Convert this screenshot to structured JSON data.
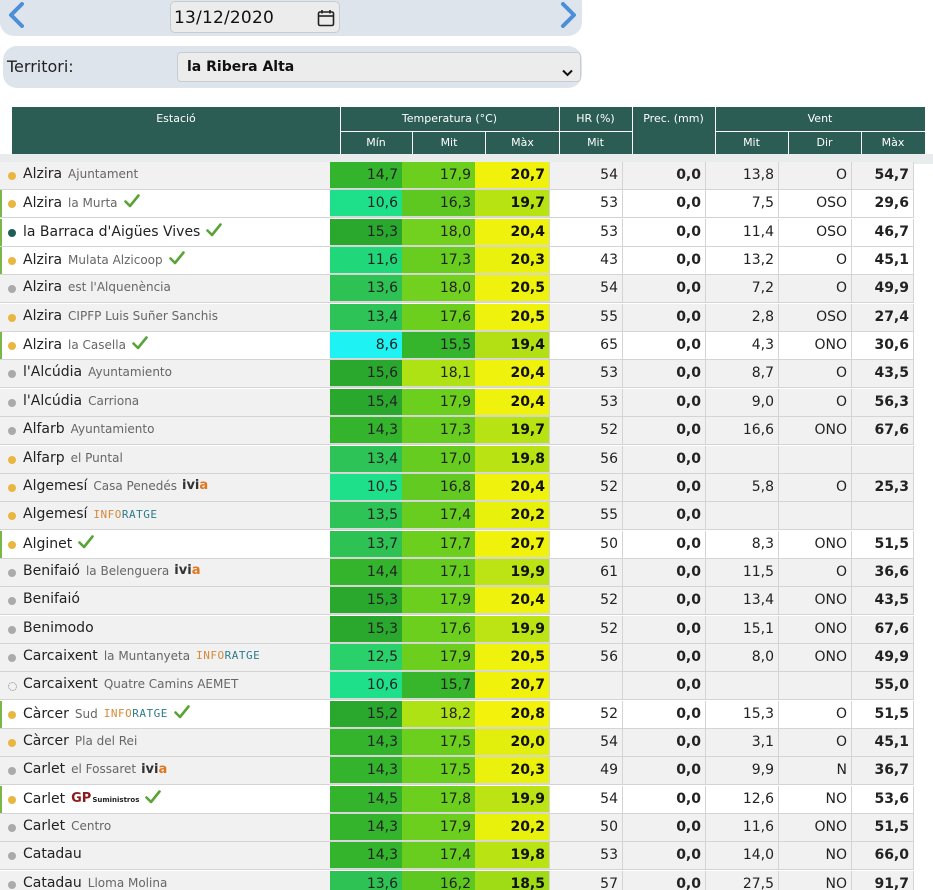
{
  "date_nav": {
    "date": "13/12/2020",
    "prev_icon": "chevron-left-icon",
    "next_icon": "chevron-right-icon",
    "calendar_icon": "calendar-icon"
  },
  "territory": {
    "label": "Territori:",
    "value": "la Ribera Alta"
  },
  "header": {
    "station": "Estació",
    "temperature": "Temperatura (°C)",
    "hr": "HR (%)",
    "prec": "Prec. (mm)",
    "wind": "Vent",
    "temp_min": "Mín",
    "temp_mit": "Mit",
    "temp_max": "Màx",
    "hr_mit": "Mit",
    "wind_mit": "Mit",
    "wind_dir": "Dir",
    "wind_max": "Màx"
  },
  "colors": {
    "header_bg": "#2b5d55",
    "check": "#5aa338",
    "dot_yellow": "#e9b640",
    "dot_gray": "#aaaaaa",
    "dot_teal": "#1e5e56"
  },
  "rows": [
    {
      "name": "Alzira",
      "sub": "Ajuntament",
      "dot": "yellow",
      "check": false,
      "logo": "",
      "min": "14,7",
      "mit": "17,9",
      "max": "20,7",
      "hr": "54",
      "prec": "0,0",
      "vmit": "13,8",
      "dir": "O",
      "vmax": "54,7",
      "min_c": "#34b42c",
      "mit_c": "#6ccf1e",
      "max_c": "#f1f20c",
      "bg": "gray"
    },
    {
      "name": "Alzira",
      "sub": "la Murta",
      "dot": "yellow",
      "check": true,
      "logo": "",
      "min": "10,6",
      "mit": "16,3",
      "max": "19,7",
      "hr": "53",
      "prec": "0,0",
      "vmit": "7,5",
      "dir": "OSO",
      "vmax": "29,6",
      "min_c": "#1fe08a",
      "mit_c": "#5ec821",
      "max_c": "#b7e313",
      "bg": "white",
      "accent": true
    },
    {
      "name": "la Barraca d'Aigües Vives",
      "sub": "",
      "dot": "teal",
      "check": true,
      "logo": "",
      "min": "15,3",
      "mit": "18,0",
      "max": "20,4",
      "hr": "53",
      "prec": "0,0",
      "vmit": "11,4",
      "dir": "OSO",
      "vmax": "46,7",
      "min_c": "#2aa82d",
      "mit_c": "#72d01e",
      "max_c": "#eef20c",
      "bg": "white",
      "accent": true
    },
    {
      "name": "Alzira",
      "sub": "Mulata Alzicoop",
      "dot": "yellow",
      "check": true,
      "logo": "",
      "min": "11,6",
      "mit": "17,3",
      "max": "20,3",
      "hr": "43",
      "prec": "0,0",
      "vmit": "13,2",
      "dir": "O",
      "vmax": "45,1",
      "min_c": "#20d87a",
      "mit_c": "#68cd1f",
      "max_c": "#eaf10c",
      "bg": "white",
      "accent": true
    },
    {
      "name": "Alzira",
      "sub": "est l'Alquenència",
      "dot": "gray",
      "check": false,
      "logo": "",
      "min": "13,6",
      "mit": "18,0",
      "max": "20,5",
      "hr": "54",
      "prec": "0,0",
      "vmit": "7,2",
      "dir": "O",
      "vmax": "49,9",
      "min_c": "#2ec153",
      "mit_c": "#72d01e",
      "max_c": "#eff20c",
      "bg": "gray"
    },
    {
      "name": "Alzira",
      "sub": "CIPFP Luis Suñer Sanchis",
      "dot": "yellow",
      "check": false,
      "logo": "",
      "min": "13,4",
      "mit": "17,6",
      "max": "20,5",
      "hr": "55",
      "prec": "0,0",
      "vmit": "2,8",
      "dir": "OSO",
      "vmax": "27,4",
      "min_c": "#2ec356",
      "mit_c": "#6ccf1e",
      "max_c": "#eff20c",
      "bg": "gray"
    },
    {
      "name": "Alzira",
      "sub": "la Casella",
      "dot": "yellow",
      "check": true,
      "logo": "",
      "min": "8,6",
      "mit": "15,5",
      "max": "19,4",
      "hr": "65",
      "prec": "0,0",
      "vmit": "4,3",
      "dir": "ONO",
      "vmax": "30,6",
      "min_c": "#1ff2f2",
      "mit_c": "#35b52b",
      "max_c": "#b2e014",
      "bg": "white",
      "accent": true
    },
    {
      "name": "l'Alcúdia",
      "sub": "Ayuntamiento",
      "dot": "gray",
      "check": false,
      "logo": "",
      "min": "15,6",
      "mit": "18,1",
      "max": "20,4",
      "hr": "53",
      "prec": "0,0",
      "vmit": "8,7",
      "dir": "O",
      "vmax": "43,5",
      "min_c": "#2aa82d",
      "mit_c": "#aee214",
      "max_c": "#eef20c",
      "bg": "gray"
    },
    {
      "name": "l'Alcúdia",
      "sub": "Carriona",
      "dot": "gray",
      "check": false,
      "logo": "",
      "min": "15,4",
      "mit": "17,9",
      "max": "20,4",
      "hr": "53",
      "prec": "0,0",
      "vmit": "9,0",
      "dir": "O",
      "vmax": "56,3",
      "min_c": "#2aa82d",
      "mit_c": "#6ccf1e",
      "max_c": "#eef20c",
      "bg": "gray"
    },
    {
      "name": "Alfarb",
      "sub": "Ayuntamiento",
      "dot": "gray",
      "check": false,
      "logo": "",
      "min": "14,3",
      "mit": "17,3",
      "max": "19,7",
      "hr": "52",
      "prec": "0,0",
      "vmit": "16,6",
      "dir": "ONO",
      "vmax": "67,6",
      "min_c": "#34b42c",
      "mit_c": "#68cd1f",
      "max_c": "#b7e313",
      "bg": "gray"
    },
    {
      "name": "Alfarp",
      "sub": "el Puntal",
      "dot": "yellow",
      "check": false,
      "logo": "",
      "min": "13,4",
      "mit": "17,0",
      "max": "19,8",
      "hr": "56",
      "prec": "0,0",
      "vmit": "",
      "dir": "",
      "vmax": "",
      "min_c": "#2ec356",
      "mit_c": "#66cc1f",
      "max_c": "#b9e313",
      "bg": "gray"
    },
    {
      "name": "Algemesí",
      "sub": "Casa Penedés",
      "dot": "yellow",
      "check": false,
      "logo": "ivia",
      "min": "10,5",
      "mit": "16,8",
      "max": "20,4",
      "hr": "52",
      "prec": "0,0",
      "vmit": "5,8",
      "dir": "O",
      "vmax": "25,3",
      "min_c": "#1fe08a",
      "mit_c": "#62ca20",
      "max_c": "#eef20c",
      "bg": "gray"
    },
    {
      "name": "Algemesí",
      "sub": "",
      "dot": "yellow",
      "check": false,
      "logo": "info",
      "min": "13,5",
      "mit": "17,4",
      "max": "20,2",
      "hr": "55",
      "prec": "0,0",
      "vmit": "",
      "dir": "",
      "vmax": "",
      "min_c": "#2ec356",
      "mit_c": "#68cd1f",
      "max_c": "#e8f10c",
      "bg": "gray"
    },
    {
      "name": "Alginet",
      "sub": "",
      "dot": "yellow",
      "check": true,
      "logo": "",
      "min": "13,7",
      "mit": "17,7",
      "max": "20,7",
      "hr": "50",
      "prec": "0,0",
      "vmit": "8,3",
      "dir": "ONO",
      "vmax": "51,5",
      "min_c": "#2ec153",
      "mit_c": "#6ccf1e",
      "max_c": "#f1f20c",
      "bg": "white",
      "accent": true
    },
    {
      "name": "Benifaió",
      "sub": "la Belenguera",
      "dot": "gray",
      "check": false,
      "logo": "ivia",
      "min": "14,4",
      "mit": "17,1",
      "max": "19,9",
      "hr": "61",
      "prec": "0,0",
      "vmit": "11,5",
      "dir": "O",
      "vmax": "36,6",
      "min_c": "#34b42c",
      "mit_c": "#66cc1f",
      "max_c": "#bce414",
      "bg": "gray"
    },
    {
      "name": "Benifaió",
      "sub": "",
      "dot": "gray",
      "check": false,
      "logo": "",
      "min": "15,3",
      "mit": "17,9",
      "max": "20,4",
      "hr": "52",
      "prec": "0,0",
      "vmit": "13,4",
      "dir": "ONO",
      "vmax": "43,5",
      "min_c": "#2aa82d",
      "mit_c": "#6ccf1e",
      "max_c": "#eef20c",
      "bg": "gray"
    },
    {
      "name": "Benimodo",
      "sub": "",
      "dot": "gray",
      "check": false,
      "logo": "",
      "min": "15,3",
      "mit": "17,6",
      "max": "19,9",
      "hr": "52",
      "prec": "0,0",
      "vmit": "15,1",
      "dir": "ONO",
      "vmax": "67,6",
      "min_c": "#2aa82d",
      "mit_c": "#6ccf1e",
      "max_c": "#bce414",
      "bg": "gray"
    },
    {
      "name": "Carcaixent",
      "sub": "la Muntanyeta",
      "dot": "gray",
      "check": false,
      "logo": "info",
      "min": "12,5",
      "mit": "17,9",
      "max": "20,5",
      "hr": "56",
      "prec": "0,0",
      "vmit": "8,0",
      "dir": "ONO",
      "vmax": "49,9",
      "min_c": "#2ad06a",
      "mit_c": "#6ccf1e",
      "max_c": "#eff20c",
      "bg": "gray"
    },
    {
      "name": "Carcaixent",
      "sub": "Quatre Camins AEMET",
      "dot": "empty",
      "check": false,
      "logo": "",
      "min": "10,6",
      "mit": "15,7",
      "max": "20,7",
      "hr": "",
      "prec": "0,0",
      "vmit": "",
      "dir": "",
      "vmax": "55,0",
      "min_c": "#1fe08a",
      "mit_c": "#37b62b",
      "max_c": "#f1f20c",
      "bg": "gray"
    },
    {
      "name": "Càrcer",
      "sub": "Sud",
      "dot": "yellow",
      "check": true,
      "logo": "info",
      "min": "15,2",
      "mit": "18,2",
      "max": "20,8",
      "hr": "52",
      "prec": "0,0",
      "vmit": "15,3",
      "dir": "O",
      "vmax": "51,5",
      "min_c": "#2aa82d",
      "mit_c": "#aee214",
      "max_c": "#f2f20c",
      "bg": "white",
      "accent": true
    },
    {
      "name": "Càrcer",
      "sub": "Pla del Rei",
      "dot": "yellow",
      "check": false,
      "logo": "",
      "min": "14,3",
      "mit": "17,5",
      "max": "20,0",
      "hr": "54",
      "prec": "0,0",
      "vmit": "3,1",
      "dir": "O",
      "vmax": "45,1",
      "min_c": "#34b42c",
      "mit_c": "#6ccf1e",
      "max_c": "#e2ef0d",
      "bg": "gray"
    },
    {
      "name": "Carlet",
      "sub": "el Fossaret",
      "dot": "gray",
      "check": false,
      "logo": "ivia",
      "min": "14,3",
      "mit": "17,5",
      "max": "20,3",
      "hr": "49",
      "prec": "0,0",
      "vmit": "9,9",
      "dir": "N",
      "vmax": "36,7",
      "min_c": "#34b42c",
      "mit_c": "#6ccf1e",
      "max_c": "#eaf10c",
      "bg": "gray"
    },
    {
      "name": "Carlet",
      "sub": "",
      "dot": "yellow",
      "check": true,
      "logo": "gp",
      "min": "14,5",
      "mit": "17,8",
      "max": "19,9",
      "hr": "54",
      "prec": "0,0",
      "vmit": "12,6",
      "dir": "NO",
      "vmax": "53,6",
      "min_c": "#34b42c",
      "mit_c": "#6ccf1e",
      "max_c": "#bce414",
      "bg": "white",
      "accent": true
    },
    {
      "name": "Carlet",
      "sub": "Centro",
      "dot": "gray",
      "check": false,
      "logo": "",
      "min": "14,3",
      "mit": "17,9",
      "max": "20,2",
      "hr": "50",
      "prec": "0,0",
      "vmit": "11,6",
      "dir": "ONO",
      "vmax": "51,5",
      "min_c": "#34b42c",
      "mit_c": "#6ccf1e",
      "max_c": "#e8f10c",
      "bg": "gray"
    },
    {
      "name": "Catadau",
      "sub": "",
      "dot": "gray",
      "check": false,
      "logo": "",
      "min": "14,3",
      "mit": "17,4",
      "max": "19,8",
      "hr": "53",
      "prec": "0,0",
      "vmit": "14,0",
      "dir": "NO",
      "vmax": "66,0",
      "min_c": "#34b42c",
      "mit_c": "#68cd1f",
      "max_c": "#b9e313",
      "bg": "gray"
    },
    {
      "name": "Catadau",
      "sub": "Lloma Molina",
      "dot": "gray",
      "check": false,
      "logo": "",
      "min": "13,6",
      "mit": "16,2",
      "max": "18,5",
      "hr": "57",
      "prec": "0,0",
      "vmit": "27,5",
      "dir": "NO",
      "vmax": "91,7",
      "min_c": "#2ec153",
      "mit_c": "#5ec821",
      "max_c": "#9fdc16",
      "bg": "gray"
    }
  ]
}
